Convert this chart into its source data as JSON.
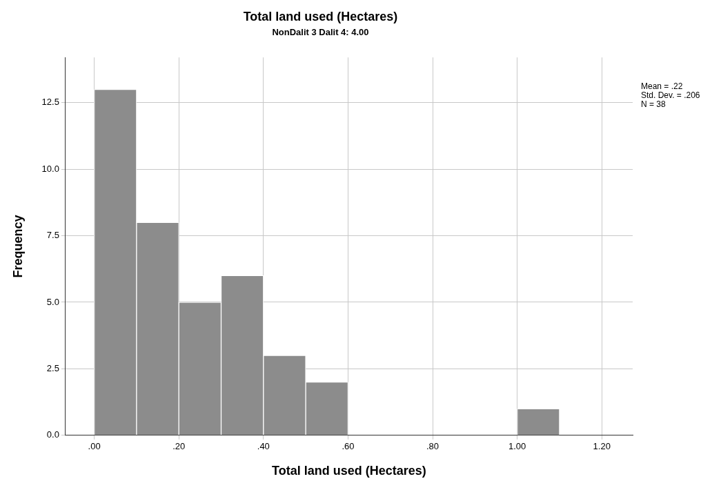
{
  "chart_data": {
    "type": "histogram",
    "title": "Total land used (Hectares)",
    "subtitle": "NonDalit 3 Dalit 4: 4.00",
    "xlabel": "Total land used (Hectares)",
    "ylabel": "Frequency",
    "bins": [
      0,
      0.1,
      0.2,
      0.3,
      0.4,
      0.5,
      0.6,
      0.7,
      0.8,
      0.9,
      1.0,
      1.1
    ],
    "values": [
      13,
      8,
      5,
      6,
      3,
      2,
      0,
      0,
      0,
      0,
      1
    ],
    "color": "#8c8c8c",
    "xlim": [
      -0.068,
      1.273
    ],
    "xticks": [
      {
        "value": 0,
        "label": ".00"
      },
      {
        "value": 0.2,
        "label": ".20"
      },
      {
        "value": 0.4,
        "label": ".40"
      },
      {
        "value": 0.6,
        "label": ".60"
      },
      {
        "value": 0.8,
        "label": ".80"
      },
      {
        "value": 1.0,
        "label": "1.00"
      },
      {
        "value": 1.2,
        "label": "1.20"
      }
    ],
    "ylim": [
      0,
      14.2
    ],
    "yticks": [
      {
        "value": 0,
        "label": "0.0"
      },
      {
        "value": 2.5,
        "label": "2.5"
      },
      {
        "value": 5,
        "label": "5.0"
      },
      {
        "value": 7.5,
        "label": "7.5"
      },
      {
        "value": 10,
        "label": "10.0"
      },
      {
        "value": 12.5,
        "label": "12.5"
      }
    ],
    "grid": true,
    "annotations": [
      "Mean = .22",
      "Std. Dev. = .206",
      "N = 38"
    ]
  }
}
